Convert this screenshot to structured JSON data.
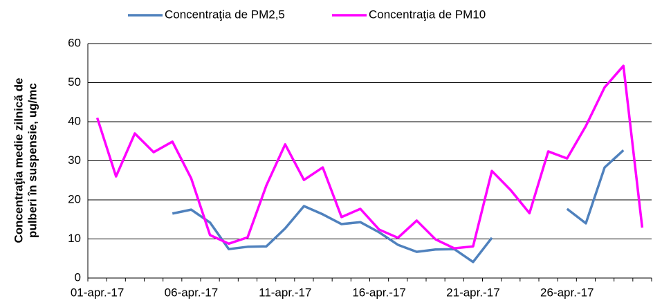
{
  "chart_data": {
    "type": "line",
    "y_label": [
      "Concentraţia medie zilnică de",
      "pulberi în suspensie, ug/mc"
    ],
    "categories": [
      "01-apr.-17",
      null,
      null,
      null,
      null,
      "06-apr.-17",
      null,
      null,
      null,
      null,
      "11-apr.-17",
      null,
      null,
      null,
      null,
      "16-apr.-17",
      null,
      null,
      null,
      null,
      "21-apr.-17",
      null,
      null,
      null,
      null,
      "26-apr.-17",
      null,
      null,
      null,
      null
    ],
    "series": [
      {
        "name": "Concentraţia de PM2,5",
        "color": "#4f81bd",
        "values": [
          null,
          null,
          null,
          null,
          16.5,
          17.5,
          14.2,
          7.4,
          8,
          8.1,
          12.7,
          18.4,
          16.3,
          13.8,
          14.3,
          11.7,
          8.5,
          6.7,
          7.3,
          7.4,
          4.1,
          10.3,
          null,
          null,
          null,
          17.7,
          14,
          28.3,
          32.7,
          null
        ]
      },
      {
        "name": "Concentraţia de PM10",
        "color": "#ff00ff",
        "values": [
          41,
          26,
          37,
          32.2,
          34.9,
          25.5,
          11,
          8.8,
          10.4,
          23.7,
          34.2,
          25.1,
          28.3,
          15.6,
          17.7,
          12.4,
          10.3,
          14.7,
          9.9,
          7.6,
          8.1,
          27.4,
          22.5,
          16.6,
          32.4,
          30.6,
          38.9,
          48.8,
          54.3,
          12.9
        ]
      }
    ],
    "ylim": [
      0,
      60
    ],
    "yticks": [
      0,
      10,
      20,
      30,
      40,
      50,
      60
    ],
    "grid": true,
    "legend": "top"
  }
}
